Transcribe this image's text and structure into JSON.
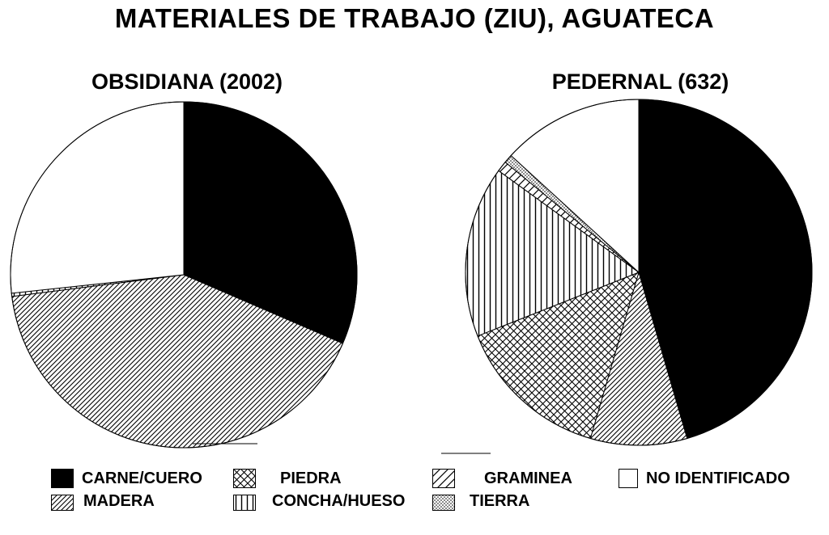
{
  "title": "MATERIALES DE TRABAJO (ZIU), AGUATECA",
  "legend": [
    {
      "key": "carne",
      "label": "CARNE/CUERO",
      "pattern": "solid"
    },
    {
      "key": "piedra",
      "label": "PIEDRA",
      "pattern": "crosshatch"
    },
    {
      "key": "graminea",
      "label": "GRAMINEA",
      "pattern": "diag-wide"
    },
    {
      "key": "noident",
      "label": "NO IDENTIFICADO",
      "pattern": "white"
    },
    {
      "key": "madera",
      "label": "MADERA",
      "pattern": "diag-dense"
    },
    {
      "key": "concha",
      "label": "CONCHA/HUESO",
      "pattern": "vertical"
    },
    {
      "key": "tierra",
      "label": "TIERRA",
      "pattern": "dots"
    }
  ],
  "chart_data": [
    {
      "type": "pie",
      "title": "OBSIDIANA (2002)",
      "slices": [
        {
          "key": "carne",
          "label": "CARNE/CUERO",
          "value": 31.5
        },
        {
          "key": "madera",
          "label": "MADERA",
          "value": 41.5
        },
        {
          "key": "concha",
          "label": "CONCHA/HUESO",
          "value": 0.3
        },
        {
          "key": "noident",
          "label": "NO IDENTIFICADO",
          "value": 26.7
        }
      ]
    },
    {
      "type": "pie",
      "title": "PEDERNAL (632)",
      "slices": [
        {
          "key": "carne",
          "label": "CARNE/CUERO",
          "value": 45.5
        },
        {
          "key": "madera",
          "label": "MADERA",
          "value": 9.0
        },
        {
          "key": "piedra",
          "label": "PIEDRA",
          "value": 14.5
        },
        {
          "key": "concha",
          "label": "CONCHA/HUESO",
          "value": 16.0
        },
        {
          "key": "graminea",
          "label": "GRAMINEA",
          "value": 1.0
        },
        {
          "key": "tierra",
          "label": "TIERRA",
          "value": 0.8
        },
        {
          "key": "noident",
          "label": "NO IDENTIFICADO",
          "value": 13.2
        }
      ]
    }
  ]
}
